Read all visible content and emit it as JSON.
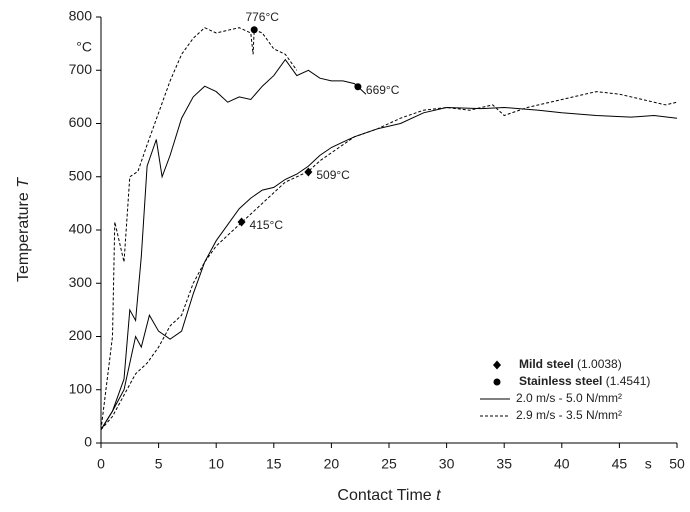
{
  "chart_data": {
    "type": "line",
    "y_label": {
      "text": "Temperature",
      "var": "T"
    },
    "x_label": {
      "text": "Contact Time",
      "var": "t"
    },
    "x_unit": "s",
    "y_unit": "°C",
    "xlim": [
      0,
      50
    ],
    "xticks": [
      0,
      5,
      10,
      15,
      20,
      25,
      30,
      35,
      40,
      45,
      50
    ],
    "ylim": [
      0,
      800
    ],
    "yticks": [
      0,
      100,
      200,
      300,
      400,
      500,
      600,
      700,
      800
    ],
    "color": "#000000",
    "series": [
      {
        "dashed": true,
        "x": [
          0,
          1,
          1.2,
          2,
          2.5,
          3.2,
          4,
          5,
          6,
          7,
          8,
          9,
          10,
          11,
          12,
          13,
          13.2,
          13.3,
          14,
          15,
          16,
          17
        ],
        "values": [
          25,
          200,
          415,
          340,
          500,
          510,
          560,
          620,
          680,
          730,
          760,
          780,
          770,
          775,
          780,
          770,
          730,
          776,
          770,
          740,
          730,
          700
        ]
      },
      {
        "dashed": false,
        "x": [
          0,
          1,
          2,
          2.5,
          3,
          3.5,
          4,
          4.8,
          5.3,
          6,
          7,
          8,
          9,
          10,
          11,
          12,
          13,
          14,
          15,
          16,
          17,
          18,
          19,
          20,
          21,
          22,
          22.3,
          23
        ],
        "values": [
          25,
          60,
          120,
          250,
          230,
          350,
          520,
          570,
          500,
          540,
          610,
          650,
          670,
          660,
          640,
          650,
          645,
          670,
          690,
          720,
          690,
          700,
          685,
          680,
          680,
          675,
          669,
          655
        ]
      },
      {
        "dashed": false,
        "x": [
          0,
          1,
          2,
          3,
          3.5,
          4.2,
          5,
          6,
          7,
          8,
          9,
          10,
          11,
          12,
          13,
          14,
          15,
          16,
          17,
          18,
          19,
          20,
          21,
          22,
          24,
          26,
          28,
          30,
          33,
          35,
          38,
          40,
          43,
          46,
          48,
          50
        ],
        "values": [
          25,
          60,
          100,
          200,
          180,
          240,
          210,
          195,
          210,
          280,
          340,
          380,
          410,
          440,
          460,
          475,
          480,
          495,
          505,
          520,
          540,
          555,
          565,
          575,
          590,
          600,
          620,
          630,
          628,
          630,
          625,
          620,
          615,
          612,
          615,
          610
        ]
      },
      {
        "dashed": true,
        "x": [
          0,
          1,
          2,
          3,
          4,
          5,
          6,
          7,
          8,
          9,
          10,
          11,
          12,
          13,
          14,
          15,
          16,
          17,
          18,
          19,
          20,
          21,
          22,
          24,
          26,
          28,
          30,
          32,
          34,
          35,
          37,
          40,
          43,
          45,
          47,
          49,
          50
        ],
        "values": [
          25,
          50,
          90,
          130,
          150,
          180,
          220,
          240,
          300,
          340,
          370,
          390,
          410,
          430,
          450,
          470,
          490,
          500,
          510,
          530,
          545,
          560,
          575,
          590,
          610,
          625,
          630,
          625,
          635,
          615,
          630,
          645,
          660,
          655,
          645,
          635,
          640
        ]
      }
    ],
    "points": [
      {
        "marker": "circle",
        "x": 13.3,
        "y": 776,
        "label": "776°C"
      },
      {
        "marker": "circle",
        "x": 22.3,
        "y": 669,
        "label": "669°C"
      },
      {
        "marker": "diamond",
        "x": 18,
        "y": 509,
        "label": "509°C"
      },
      {
        "marker": "diamond",
        "x": 12.2,
        "y": 415,
        "label": "415°C"
      }
    ],
    "legend": [
      {
        "marker": "diamond",
        "bold": "Mild steel",
        "text": "(1.0038)"
      },
      {
        "marker": "circle",
        "bold": "Stainless steel",
        "text": "(1.4541)"
      },
      {
        "line": "solid",
        "text": "2.0 m/s - 5.0 N/mm²"
      },
      {
        "line": "dashed",
        "text": "2.9 m/s - 3.5 N/mm²"
      }
    ]
  }
}
